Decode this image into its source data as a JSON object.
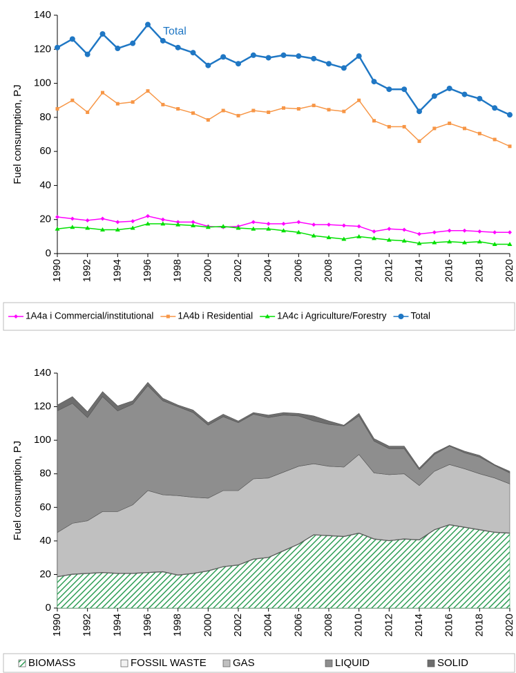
{
  "chart_data": [
    {
      "type": "line",
      "ylabel": "Fuel consumption, PJ",
      "x": [
        1990,
        1991,
        1992,
        1993,
        1994,
        1995,
        1996,
        1997,
        1998,
        1999,
        2000,
        2001,
        2002,
        2003,
        2004,
        2005,
        2006,
        2007,
        2008,
        2009,
        2010,
        2011,
        2012,
        2013,
        2014,
        2015,
        2016,
        2017,
        2018,
        2019,
        2020
      ],
      "xlim": [
        1990,
        2020
      ],
      "xticks": [
        1990,
        1992,
        1994,
        1996,
        1998,
        2000,
        2002,
        2004,
        2006,
        2008,
        2010,
        2012,
        2014,
        2016,
        2018,
        2020
      ],
      "ylim": [
        0,
        140
      ],
      "yticks": [
        0,
        20,
        40,
        60,
        80,
        100,
        120,
        140
      ],
      "annotation": "Total",
      "series": [
        {
          "name": "1A4a i Commercial/institutional",
          "color": "#ff00ff",
          "marker": "diamond",
          "values": [
            21.5,
            20.5,
            19.5,
            20.5,
            18.5,
            19,
            22,
            20,
            18.5,
            18.5,
            16,
            15.5,
            16,
            18.5,
            17.5,
            17.5,
            18.5,
            17,
            17,
            16.5,
            16,
            13,
            14.5,
            14,
            11.5,
            12.5,
            13.5,
            13.5,
            13,
            12.5,
            12.5
          ]
        },
        {
          "name": "1A4b i Residential",
          "color": "#f79646",
          "marker": "square",
          "values": [
            85,
            90,
            83,
            94.5,
            88,
            89,
            95.5,
            87.5,
            85,
            82.5,
            78.5,
            84,
            81,
            84,
            83,
            85.5,
            85,
            87,
            84.5,
            83.5,
            90,
            78,
            74.5,
            74.5,
            66,
            73.5,
            76.5,
            73.5,
            70.5,
            67,
            63
          ]
        },
        {
          "name": "1A4c i Agriculture/Forestry",
          "color": "#00e000",
          "marker": "triangle",
          "values": [
            14.5,
            15.5,
            15,
            14,
            14,
            15,
            17.5,
            17.5,
            17,
            16.5,
            15.5,
            16,
            15,
            14.5,
            14.5,
            13.5,
            12.5,
            10.5,
            9.5,
            8.5,
            10,
            9,
            8,
            7.5,
            6,
            6.5,
            7,
            6.5,
            7,
            5.5,
            5.5
          ]
        },
        {
          "name": "Total",
          "color": "#1f77c4",
          "marker": "circle",
          "values": [
            121,
            126,
            117,
            129,
            120.5,
            123.5,
            134.5,
            125,
            121,
            118,
            110.5,
            115.5,
            111.5,
            116.5,
            115,
            116.5,
            116,
            114.5,
            111.5,
            109,
            116,
            101,
            96.5,
            96.5,
            83.5,
            92.5,
            97,
            93.5,
            91,
            85.5,
            81.5
          ]
        }
      ]
    },
    {
      "type": "stacked_area",
      "ylabel": "Fuel consumption, PJ",
      "x": [
        1990,
        1991,
        1992,
        1993,
        1994,
        1995,
        1996,
        1997,
        1998,
        1999,
        2000,
        2001,
        2002,
        2003,
        2004,
        2005,
        2006,
        2007,
        2008,
        2009,
        2010,
        2011,
        2012,
        2013,
        2014,
        2015,
        2016,
        2017,
        2018,
        2019,
        2020
      ],
      "xlim": [
        1990,
        2020
      ],
      "xticks": [
        1990,
        1992,
        1994,
        1996,
        1998,
        2000,
        2002,
        2004,
        2006,
        2008,
        2010,
        2012,
        2014,
        2016,
        2018,
        2020
      ],
      "ylim": [
        0,
        140
      ],
      "yticks": [
        0,
        20,
        40,
        60,
        80,
        100,
        120,
        140
      ],
      "series": [
        {
          "name": "BIOMASS",
          "color": "#2e9e55",
          "hatch": true,
          "values": [
            18.5,
            20,
            20.5,
            21,
            20.5,
            20.5,
            21,
            21.5,
            19.5,
            20.5,
            22,
            24.5,
            25.5,
            29,
            30,
            34,
            38,
            43.5,
            43,
            42.5,
            44.5,
            41,
            40,
            41,
            40.5,
            46.5,
            49.5,
            48,
            46.5,
            45,
            44.5
          ]
        },
        {
          "name": "FOSSIL WASTE",
          "color": "#f2f2f2",
          "values": [
            0.3,
            0.3,
            0.3,
            0.3,
            0.3,
            0.3,
            0.3,
            0.3,
            0.3,
            0.3,
            0.3,
            0.3,
            0.3,
            0.3,
            0.3,
            0.3,
            0.3,
            0.3,
            0.3,
            0.3,
            0.3,
            0.3,
            0.3,
            0.3,
            0.3,
            0.3,
            0.3,
            0.3,
            0.3,
            0.3,
            0.3
          ]
        },
        {
          "name": "GAS",
          "color": "#c0c0c0",
          "values": [
            26.2,
            30.2,
            31.2,
            36.2,
            36.7,
            40.7,
            48.7,
            45.7,
            47.2,
            45.2,
            43.2,
            45.2,
            44.2,
            47.7,
            47.2,
            46.7,
            46.2,
            42.2,
            41.2,
            41.2,
            46.7,
            39.2,
            39.2,
            38.7,
            32.2,
            34.7,
            35.7,
            34.7,
            33.2,
            32.2,
            29.2
          ]
        },
        {
          "name": "LIQUID",
          "color": "#8e8e8e",
          "values": [
            72.5,
            71.5,
            61.5,
            68.5,
            60,
            60,
            62.5,
            56,
            53,
            50.5,
            43.5,
            44,
            40.5,
            38.5,
            36,
            34,
            30,
            25.5,
            25,
            24.5,
            23,
            19,
            15.5,
            15,
            9.5,
            10,
            11,
            9.5,
            10,
            7.5,
            6.5
          ]
        },
        {
          "name": "SOLID",
          "color": "#6e6e6e",
          "values": [
            3.5,
            4,
            3.5,
            3,
            3,
            2,
            2,
            1.5,
            1,
            1.5,
            1.5,
            1.5,
            1,
            1,
            1.5,
            1.5,
            1.5,
            3,
            2,
            0.5,
            1.5,
            1.5,
            1.5,
            1.5,
            1,
            1,
            0.5,
            1,
            1,
            0.5,
            1
          ]
        }
      ]
    }
  ]
}
